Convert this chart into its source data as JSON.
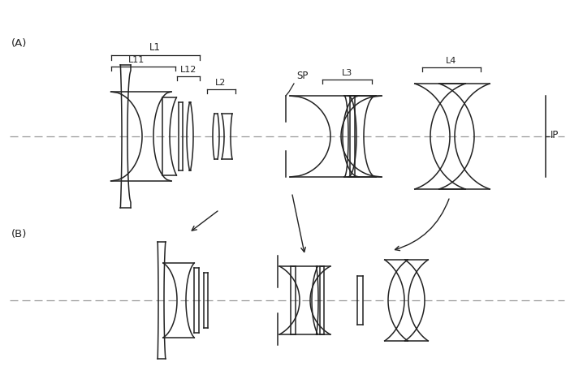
{
  "bg_color": "#ffffff",
  "line_color": "#222222",
  "dash_color": "#999999",
  "label_A": "(A)",
  "label_B": "(B)",
  "label_L1": "L1",
  "label_L11": "L11",
  "label_L12": "L12",
  "label_L2": "L2",
  "label_SP": "SP",
  "label_L3": "L3",
  "label_L4": "L4",
  "label_IP": "IP"
}
